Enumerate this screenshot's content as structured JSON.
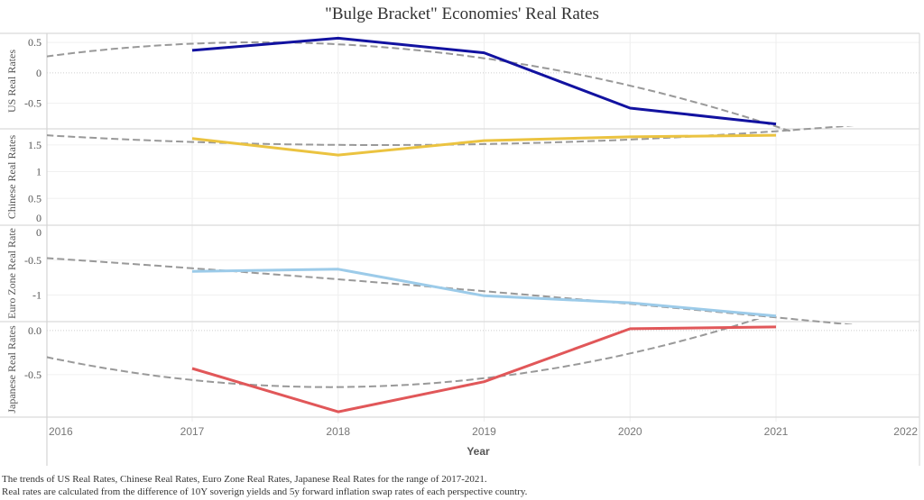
{
  "title": "\"Bulge Bracket\" Economies' Real Rates",
  "caption": {
    "line1": "The trends of US Real Rates, Chinese Real Rates, Euro Zone Real Rates, Japanese Real Rates for the range of 2017-2021.",
    "line2": "Real rates are calculated from the difference of 10Y soverign yields and 5y forward inflation swap rates of each perspective country."
  },
  "chart_data": {
    "type": "line",
    "layout": "small-multiples-stacked",
    "title": "\"Bulge Bracket\" Economies' Real Rates",
    "xlabel": "Year",
    "x": [
      2017,
      2018,
      2019,
      2020,
      2021
    ],
    "xlim": [
      2016,
      2022
    ],
    "xticks": [
      "2016",
      "2017",
      "2018",
      "2019",
      "2020",
      "2021",
      "2022"
    ],
    "grid": true,
    "legend": "none",
    "trend_style": {
      "color": "#999999",
      "style": "dashed"
    },
    "series": [
      {
        "name": "US Real Rates",
        "ylabel": "US Real Rates",
        "color": "#1212a0",
        "values": [
          0.37,
          0.57,
          0.33,
          -0.58,
          -0.84
        ],
        "ylim": [
          -0.92,
          0.65
        ],
        "yticks": [
          {
            "value": 0.5,
            "label": "0.5"
          },
          {
            "value": 0,
            "label": "0"
          },
          {
            "value": -0.5,
            "label": "-0.5"
          }
        ],
        "trend": {
          "type": "polynomial",
          "degree": 2,
          "x_origin": 2016,
          "coefficients": [
            0.27,
            0.32,
            -0.11
          ]
        }
      },
      {
        "name": "Chinese Real Rates",
        "ylabel": "Chinese Real Rates",
        "color": "#ebc340",
        "values": [
          1.62,
          1.31,
          1.58,
          1.65,
          1.68
        ],
        "ylim": [
          0.0,
          1.8
        ],
        "yticks": [
          {
            "value": 1.5,
            "label": "1.5"
          },
          {
            "value": 1,
            "label": "1"
          },
          {
            "value": 0.5,
            "label": "0.5"
          },
          {
            "value": 0,
            "label": "0"
          }
        ],
        "trend": {
          "type": "polynomial",
          "degree": 2,
          "x_origin": 2016,
          "coefficients": [
            1.68,
            -0.16,
            0.035
          ]
        }
      },
      {
        "name": "Euro Zone Real Rates",
        "ylabel": "Euro Zone Real Rate",
        "color": "#9ccbe9",
        "values": [
          -0.66,
          -0.63,
          -1.01,
          -1.11,
          -1.3
        ],
        "ylim": [
          -1.38,
          0.0
        ],
        "yticks": [
          {
            "value": 0,
            "label": "0"
          },
          {
            "value": -0.5,
            "label": "-0.5"
          },
          {
            "value": -1,
            "label": "-1"
          }
        ],
        "trend": {
          "type": "polynomial",
          "degree": 2,
          "x_origin": 2016,
          "coefficients": [
            -0.47,
            -0.14,
            -0.006
          ]
        }
      },
      {
        "name": "Japanese Real Rates",
        "ylabel": "Japanese Real Rates",
        "color": "#e15759",
        "values": [
          -0.43,
          -0.92,
          -0.58,
          0.02,
          0.04
        ],
        "ylim": [
          -0.98,
          0.1
        ],
        "yticks": [
          {
            "value": 0,
            "label": "0.0"
          },
          {
            "value": -0.5,
            "label": "-0.5"
          }
        ],
        "trend": {
          "type": "polynomial",
          "degree": 2,
          "x_origin": 2016,
          "coefficients": [
            -0.3,
            -0.35,
            0.09
          ]
        }
      }
    ]
  }
}
